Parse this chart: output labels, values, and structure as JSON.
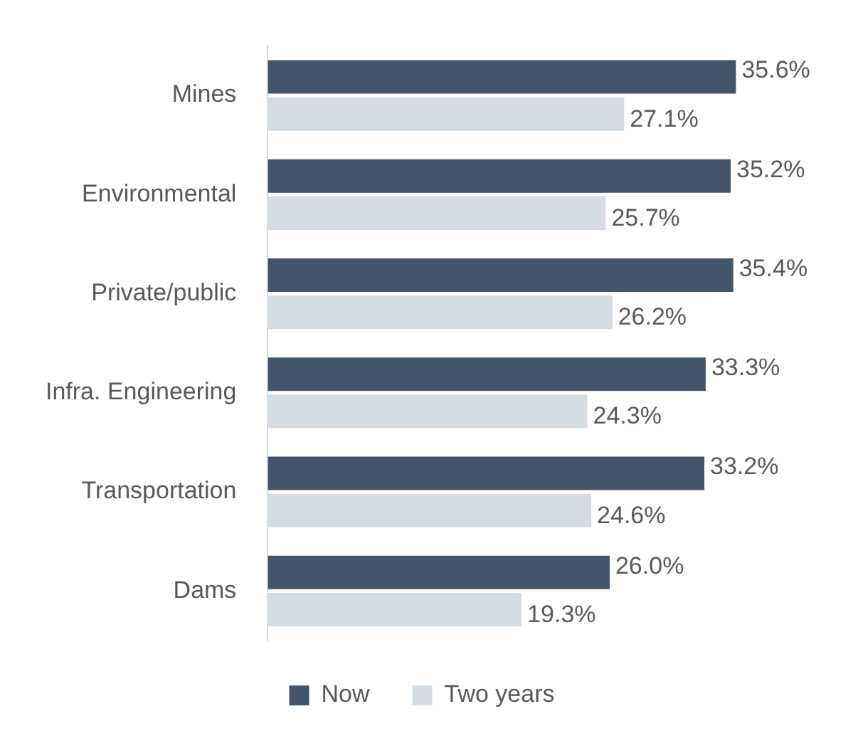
{
  "chart_data": {
    "type": "bar",
    "orientation": "horizontal",
    "categories": [
      "Mines",
      "Environmental",
      "Private/public",
      "Infra. Engineering",
      "Transportation",
      "Dams"
    ],
    "series": [
      {
        "name": "Now",
        "color": "#44546a",
        "values": [
          35.6,
          35.2,
          35.4,
          33.3,
          33.2,
          26.0
        ],
        "value_labels": [
          "35.6%",
          "35.2%",
          "35.4%",
          "33.3%",
          "33.2%",
          "26.0%"
        ]
      },
      {
        "name": "Two years",
        "color": "#d6dce4",
        "values": [
          27.1,
          25.7,
          26.2,
          24.3,
          24.6,
          19.3
        ],
        "value_labels": [
          "27.1%",
          "25.7%",
          "26.2%",
          "24.3%",
          "24.6%",
          "19.3%"
        ]
      }
    ],
    "legend": "bottom"
  }
}
